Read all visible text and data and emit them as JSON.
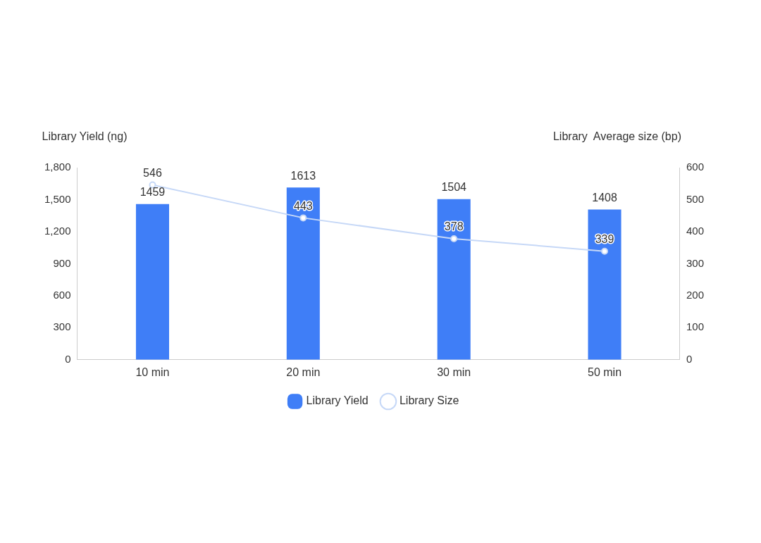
{
  "chart_data": {
    "type": "bar",
    "ylabel": "Library Yield (ng)",
    "y2label": "Library  Average size (bp)",
    "categories": [
      "10 min",
      "20 min",
      "30 min",
      "50 min"
    ],
    "series": [
      {
        "name": "Library Yield",
        "color": "#3f7ef7",
        "values": [
          1459,
          1613,
          1504,
          1408
        ]
      },
      {
        "name": "Library Size",
        "type": "line",
        "axis": "y2",
        "color": "#c6d8f7",
        "values": [
          546,
          443,
          378,
          339
        ]
      }
    ],
    "ylim": [
      0,
      1800
    ],
    "yticks": [
      0,
      300,
      600,
      900,
      {
        "value": 1200,
        "label": "1,200"
      },
      {
        "value": 1500,
        "label": "1,500"
      },
      {
        "value": 1800,
        "label": "1,800"
      }
    ],
    "y2lim": [
      0,
      600
    ],
    "y2ticks": [
      0,
      100,
      200,
      300,
      400,
      500,
      600
    ],
    "data_labels": true,
    "legend": "bottom",
    "marker": "circle",
    "line_style": "solid",
    "grid": false
  }
}
